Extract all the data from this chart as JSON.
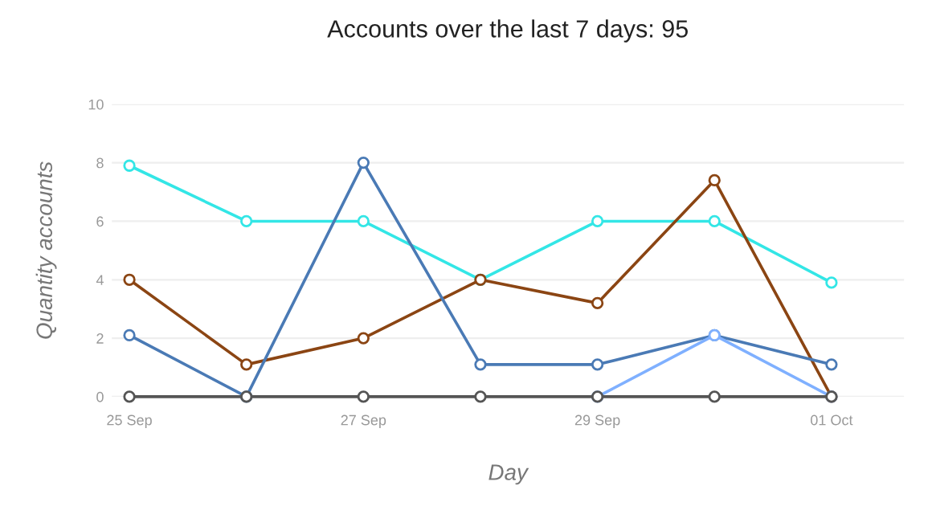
{
  "chart_data": {
    "type": "line",
    "title": "Accounts over the last 7 days: 95",
    "xlabel": "Day",
    "ylabel": "Quantity accounts",
    "categories": [
      "25 Sep",
      null,
      "27 Sep",
      null,
      "29 Sep",
      null,
      "01 Oct"
    ],
    "series": [
      {
        "color": "#33e6e6",
        "values": [
          7.9,
          6,
          6,
          4,
          6,
          6,
          3.9
        ]
      },
      {
        "color": "#8b4513",
        "values": [
          4,
          1.1,
          2,
          4,
          3.2,
          7.4,
          0
        ]
      },
      {
        "color": "#4a7ab5",
        "values": [
          2.1,
          0,
          8,
          1.1,
          1.1,
          2.1,
          1.1
        ]
      },
      {
        "color": "#7fb0ff",
        "values": [
          null,
          null,
          null,
          null,
          0,
          2.1,
          0
        ]
      },
      {
        "color": "#555555",
        "values": [
          0,
          0,
          0,
          0,
          0,
          0,
          0
        ]
      }
    ],
    "ylim": [
      0,
      10
    ],
    "yticks": [
      0,
      2,
      4,
      6,
      8,
      10
    ],
    "grid": "y",
    "marker": "circle",
    "line_style": "solid",
    "legend": false
  }
}
